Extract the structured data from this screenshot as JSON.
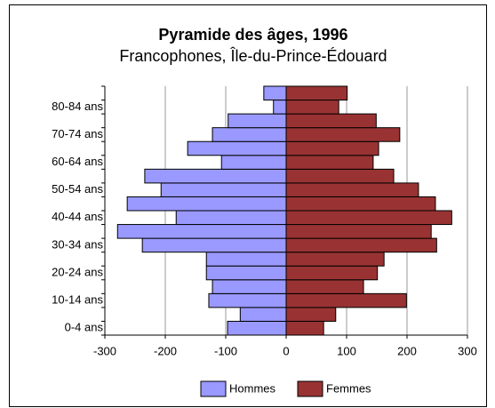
{
  "chart_data": {
    "type": "pyramid",
    "title": "Pyramide des âges, 1996",
    "subtitle": "Francophones, Île-du-Prince-Édouard",
    "categories": [
      "0-4 ans",
      null,
      "10-14 ans",
      null,
      "20-24 ans",
      null,
      "30-34 ans",
      null,
      "40-44 ans",
      null,
      "50-54 ans",
      null,
      "60-64 ans",
      null,
      "70-74 ans",
      null,
      "80-84 ans",
      null
    ],
    "series": [
      {
        "name": "Hommes",
        "color": "#9999ff",
        "values": [
          -97,
          -76,
          -128,
          -122,
          -132,
          -132,
          -238,
          -279,
          -182,
          -263,
          -207,
          -234,
          -107,
          -163,
          -122,
          -96,
          -21,
          -37
        ]
      },
      {
        "name": "Femmes",
        "color": "#993333",
        "values": [
          62,
          82,
          199,
          128,
          151,
          162,
          249,
          240,
          274,
          247,
          219,
          178,
          144,
          153,
          188,
          149,
          87,
          101
        ]
      }
    ],
    "xlim": [
      -300,
      300
    ],
    "xticks": [
      -300,
      -200,
      -100,
      0,
      100,
      200,
      300
    ],
    "grid": true,
    "legend": "bottom"
  }
}
